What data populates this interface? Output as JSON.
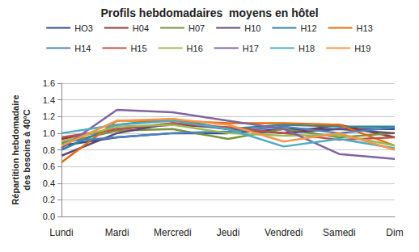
{
  "chart_data": {
    "type": "line",
    "title": "Profils hebdomadaires  moyens en hôtel",
    "y_label": "Répartition hebdomadaire des besoins à 40°C",
    "categories": [
      "Lundi",
      "Mardi",
      "Mercredi",
      "Jeudi",
      "Vendredi",
      "Samedi",
      "Dim"
    ],
    "series": [
      {
        "name": "HO3",
        "color": "#2C4D8A",
        "values": [
          0.85,
          0.95,
          1.0,
          1.0,
          1.05,
          1.05,
          1.05
        ]
      },
      {
        "name": "H04",
        "color": "#943634",
        "values": [
          0.93,
          1.05,
          1.1,
          1.07,
          1.0,
          1.1,
          0.95
        ]
      },
      {
        "name": "H07",
        "color": "#77933C",
        "values": [
          0.88,
          1.03,
          1.05,
          0.93,
          1.05,
          0.95,
          1.0
        ]
      },
      {
        "name": "H10",
        "color": "#5F497A",
        "values": [
          0.73,
          1.0,
          1.12,
          1.05,
          1.0,
          1.05,
          1.0
        ]
      },
      {
        "name": "H12",
        "color": "#31859C",
        "values": [
          0.8,
          1.1,
          1.17,
          1.05,
          1.1,
          1.08,
          1.08
        ]
      },
      {
        "name": "H13",
        "color": "#E46C0A",
        "values": [
          0.65,
          1.15,
          1.15,
          1.12,
          1.12,
          1.1,
          0.85
        ]
      },
      {
        "name": "H14",
        "color": "#4F81BD",
        "values": [
          0.9,
          0.95,
          1.0,
          1.02,
          1.08,
          1.0,
          1.07
        ]
      },
      {
        "name": "H15",
        "color": "#C0504D",
        "values": [
          0.95,
          1.05,
          1.12,
          1.07,
          1.0,
          0.92,
          0.95
        ]
      },
      {
        "name": "H16",
        "color": "#9BBB59",
        "values": [
          0.9,
          1.08,
          1.1,
          1.0,
          0.97,
          0.98,
          0.85
        ]
      },
      {
        "name": "H17",
        "color": "#8064A2",
        "values": [
          0.82,
          1.28,
          1.25,
          1.15,
          1.05,
          0.75,
          0.69
        ]
      },
      {
        "name": "H18",
        "color": "#4BACC6",
        "values": [
          1.0,
          1.1,
          1.15,
          1.05,
          0.84,
          0.93,
          0.82
        ]
      },
      {
        "name": "H19",
        "color": "#F79646",
        "values": [
          0.85,
          1.15,
          1.17,
          1.1,
          0.9,
          1.0,
          0.8
        ]
      }
    ],
    "ylim": [
      0,
      1.6
    ],
    "yticks": [
      {
        "value": 0,
        "label": "0.0"
      },
      {
        "value": 0.2,
        "label": "0.2"
      },
      {
        "value": 0.4,
        "label": "0.4"
      },
      {
        "value": 0.6,
        "label": "0.6"
      },
      {
        "value": 0.8,
        "label": "0.8"
      },
      {
        "value": 1.0,
        "label": "1.0"
      },
      {
        "value": 1.2,
        "label": "1.2"
      },
      {
        "value": 1.4,
        "label": "1.4"
      },
      {
        "value": 1.6,
        "label": "1.6"
      }
    ],
    "grid": true,
    "legend": "top"
  }
}
